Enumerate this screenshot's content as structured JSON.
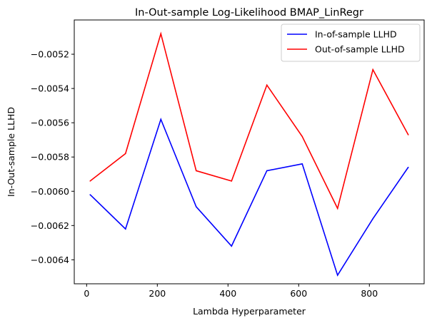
{
  "chart_data": {
    "type": "line",
    "title": "In-Out-sample Log-Likelihood BMAP_LinRegr",
    "xlabel": "Lambda Hyperparameter",
    "ylabel": "In-Out-sample LLHD",
    "x": [
      10,
      110,
      210,
      310,
      410,
      510,
      610,
      710,
      810,
      910
    ],
    "xlim": [
      -35,
      955
    ],
    "ylim": [
      -0.00654,
      -0.005
    ],
    "xticks": [
      0,
      200,
      400,
      600,
      800
    ],
    "xtick_labels": [
      "0",
      "200",
      "400",
      "600",
      "800"
    ],
    "yticks": [
      -0.0064,
      -0.0062,
      -0.006,
      -0.0058,
      -0.0056,
      -0.0054,
      -0.0052
    ],
    "ytick_labels": [
      "−0.0064",
      "−0.0062",
      "−0.0060",
      "−0.0058",
      "−0.0056",
      "−0.0054",
      "−0.0052"
    ],
    "grid": false,
    "legend_position": "top-right",
    "series": [
      {
        "name": "In-of-sample LLHD",
        "color": "#0000ff",
        "values": [
          -0.00602,
          -0.00622,
          -0.00558,
          -0.00609,
          -0.00632,
          -0.00588,
          -0.00584,
          -0.00649,
          -0.00616,
          -0.00586
        ]
      },
      {
        "name": "Out-of-sample LLHD",
        "color": "#ff0000",
        "values": [
          -0.00594,
          -0.00578,
          -0.00508,
          -0.00588,
          -0.00594,
          -0.00538,
          -0.00568,
          -0.0061,
          -0.00529,
          -0.00567
        ]
      }
    ]
  }
}
